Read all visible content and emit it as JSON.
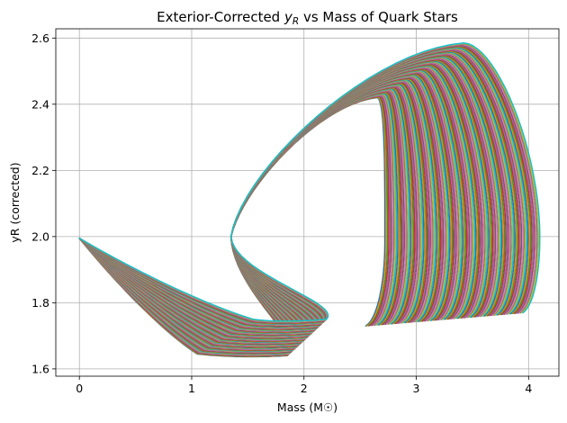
{
  "chart_data": {
    "type": "line",
    "title": "Exterior-Corrected y_R vs Mass of Quark Stars",
    "title_parts": {
      "before": "Exterior-Corrected ",
      "symbol": "y",
      "subscript": "R",
      "after": " vs Mass of Quark Stars"
    },
    "xlabel": "Mass (M☉)",
    "ylabel": "yR (corrected)",
    "xlim": [
      -0.21,
      4.27
    ],
    "ylim": [
      1.578,
      2.628
    ],
    "x_ticks": [
      0,
      1,
      2,
      3,
      4
    ],
    "x_tick_labels": [
      "0",
      "1",
      "2",
      "3",
      "4"
    ],
    "y_ticks": [
      1.6,
      1.8,
      2.0,
      2.2,
      2.4,
      2.6
    ],
    "y_tick_labels": [
      "1.6",
      "1.8",
      "2.0",
      "2.2",
      "2.4",
      "2.6"
    ],
    "grid": true,
    "legend": "none",
    "color_cycle": [
      "#1f77b4",
      "#ff7f0e",
      "#2ca02c",
      "#d62728",
      "#9467bd",
      "#8c564b",
      "#e377c2",
      "#7f7f7f",
      "#bcbd22",
      "#17becf"
    ],
    "family": {
      "count": 120,
      "shared_start": {
        "x": 0.0,
        "y": 1.995
      },
      "first_curve": {
        "knee": {
          "x": 1.05,
          "y": 1.645
        },
        "min": {
          "x": 1.85,
          "y": 1.64
        },
        "branch_start": {
          "x": 1.35,
          "y": 2.0
        },
        "peak": {
          "x": 2.65,
          "y": 2.42
        },
        "max_mass": {
          "x": 2.72,
          "y": 1.98
        },
        "end": {
          "x": 2.55,
          "y": 1.73
        }
      },
      "last_curve": {
        "knee": {
          "x": 1.55,
          "y": 1.75
        },
        "min": {
          "x": 2.2,
          "y": 1.75
        },
        "branch_start": {
          "x": 1.35,
          "y": 2.0
        },
        "peak": {
          "x": 3.42,
          "y": 2.585
        },
        "max_mass": {
          "x": 4.1,
          "y": 2.0
        },
        "end": {
          "x": 3.95,
          "y": 1.77
        }
      }
    }
  }
}
